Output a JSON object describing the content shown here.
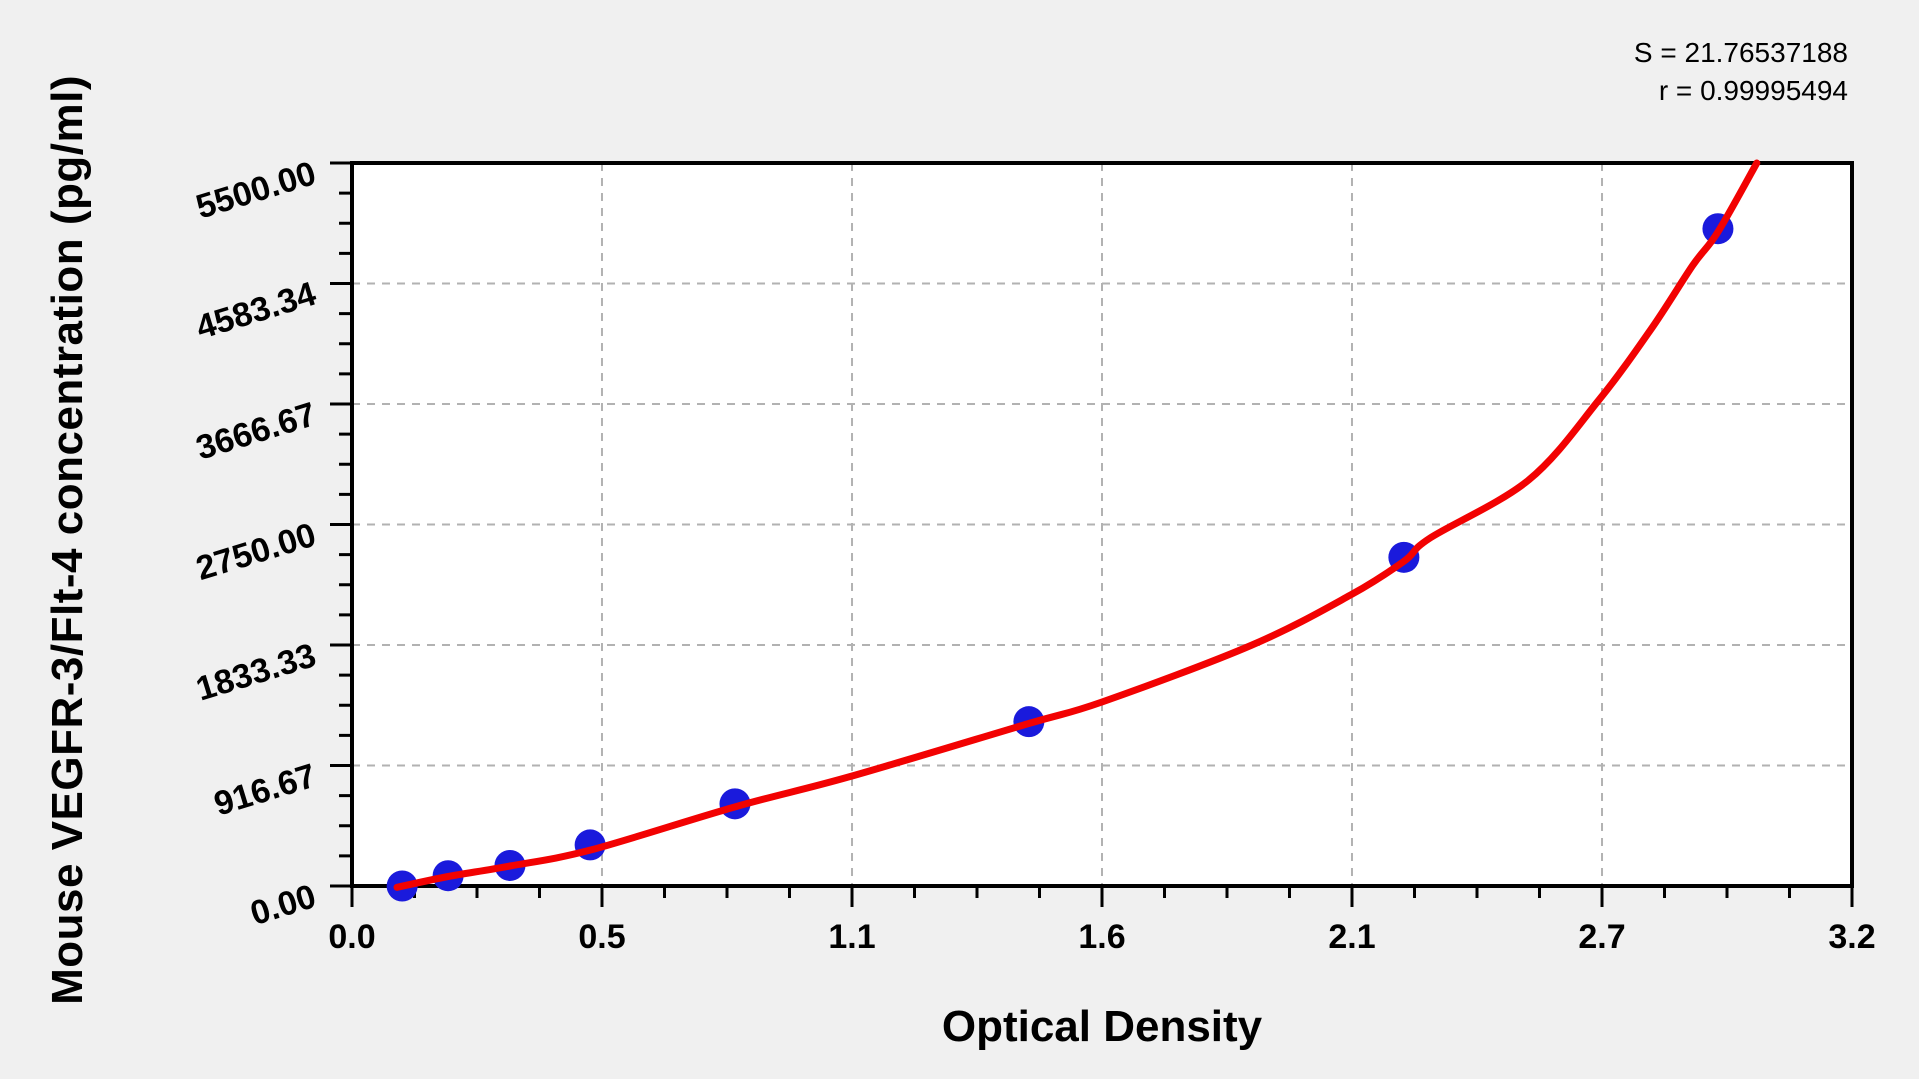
{
  "figure": {
    "background": "#f0f0f0",
    "plot_background": "#ffffff",
    "frame_color": "#000000",
    "grid_color": "#b2b2b2",
    "curve_color": "#f20202",
    "point_color": "#1a1adc",
    "text_color": "#000000"
  },
  "annotations": {
    "s_line": "S = 21.76537188",
    "r_line": "r = 0.99995494"
  },
  "chart_data": {
    "type": "scatter",
    "title": "",
    "xlabel": "Optical Density",
    "ylabel": "Mouse VEGFR-3/Flt-4 concentration (pg/ml)",
    "xlim": [
      0,
      3.2
    ],
    "ylim": [
      0,
      5500
    ],
    "grid": "dashed gray lines at interior major ticks, both axes",
    "legend_position": "none",
    "x_ticks": [
      {
        "v": 0.0,
        "label": "0.0"
      },
      {
        "v": 0.5333,
        "label": "0.5"
      },
      {
        "v": 1.0667,
        "label": "1.1"
      },
      {
        "v": 1.6,
        "label": "1.6"
      },
      {
        "v": 2.1333,
        "label": "2.1"
      },
      {
        "v": 2.6667,
        "label": "2.7"
      },
      {
        "v": 3.2,
        "label": "3.2"
      }
    ],
    "y_ticks": [
      {
        "v": 0,
        "label": "0.00"
      },
      {
        "v": 916.67,
        "label": "916.67"
      },
      {
        "v": 1833.33,
        "label": "1833.33"
      },
      {
        "v": 2750.0,
        "label": "2750.00"
      },
      {
        "v": 3666.67,
        "label": "3666.67"
      },
      {
        "v": 4583.33,
        "label": "4583.34"
      },
      {
        "v": 5500.0,
        "label": "5500.00"
      }
    ],
    "x_minor_divisions": 24,
    "y_minor_divisions": 24,
    "series": [
      {
        "name": "standard points",
        "type": "scatter",
        "marker": "filled circle",
        "x": [
          0.107,
          0.205,
          0.337,
          0.508,
          0.817,
          1.444,
          2.244,
          2.914
        ],
        "y": [
          0,
          78.13,
          156.25,
          312.5,
          625,
          1250,
          2500,
          5000
        ]
      },
      {
        "name": "fitted standard curve",
        "type": "line",
        "x": [
          0.096,
          0.205,
          0.337,
          0.51,
          0.82,
          1.06,
          1.44,
          1.6,
          1.92,
          2.13,
          2.244,
          2.3,
          2.51,
          2.66,
          2.77,
          2.86,
          2.914,
          2.997
        ],
        "y": [
          -10,
          72,
          152,
          275,
          605,
          830,
          1232,
          1400,
          1833,
          2213,
          2470,
          2647,
          3088,
          3697,
          4229,
          4720,
          4975,
          5500
        ]
      }
    ],
    "fit_stats": {
      "S": 21.76537188,
      "r": 0.99995494
    }
  }
}
